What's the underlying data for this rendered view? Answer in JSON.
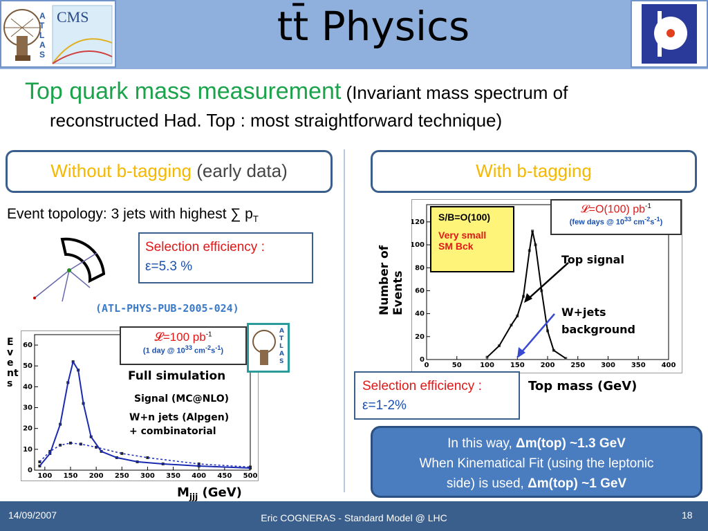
{
  "header": {
    "title": "tt̄ Physics",
    "logo_left_text": "CMS",
    "logo_left_atlas": "ATLAS"
  },
  "subtitle": {
    "main": "Top quark mass measurement",
    "paren": "(Invariant mass spectrum of",
    "line2": "reconstructed Had. Top : most straightforward technique)"
  },
  "left": {
    "pill_orange": "Without b-tagging",
    "pill_gray": "(early data)",
    "topology": "Event topology: 3 jets with highest ∑ p",
    "topology_sub": "T",
    "sel_label": "Selection efficiency :",
    "sel_value": "ε=5.3 %",
    "reference": "(ATL-PHYS-PUB-2005-024)",
    "lumi_main": "𝓛=100 pb",
    "lumi_sup": "-1",
    "lumi_note": "(1 day @ 10",
    "lumi_note_sup": "33",
    "lumi_note_tail": " cm",
    "lumi_note_sup2": "-2",
    "lumi_note_tail2": "s",
    "lumi_note_sup3": "-1",
    "lumi_note_end": ")",
    "atlas_badge": "ATLAS",
    "full_sim": "Full simulation",
    "signal": "Signal (MC@NLO)",
    "bkg1": "W+n jets (Alpgen)",
    "bkg2": "+ combinatorial",
    "ylabel": "Events",
    "xlabel_main": "M",
    "xlabel_sub": "jjj",
    "xlabel_unit": " (GeV)"
  },
  "right": {
    "pill": "With b-tagging",
    "sb_title": "S/B=O(100)",
    "sb_note1": "Very small",
    "sb_note2": "SM Bck",
    "lumi_main": "𝓛=O(100) pb",
    "lumi_sup": "-1",
    "lumi_note": "(few days @ 10",
    "lumi_note_sup": "33",
    "lumi_note_tail": " cm",
    "lumi_note_sup2": "-2",
    "lumi_note_tail2": "s",
    "lumi_note_sup3": "-1",
    "lumi_note_end": ")",
    "top_signal": "Top signal",
    "wjets1": "W+jets",
    "wjets2": "background",
    "ylabel1": "Number of",
    "ylabel2": "Events",
    "xlabel": "Top mass (GeV)",
    "sel_label": "Selection efficiency :",
    "sel_value": "ε=1-2%"
  },
  "note": {
    "line1_pre": "In this way, ",
    "line1_bold": "Δm(top) ~1.3 GeV",
    "line2": "When Kinematical Fit (using the leptonic",
    "line3_pre": "side) is used, ",
    "line3_bold": "Δm(top) ~1 GeV"
  },
  "footer": {
    "date": "14/09/2007",
    "author": "Eric COGNERAS - Standard Model @ LHC",
    "page": "18"
  },
  "chart_data": [
    {
      "type": "line",
      "x_ticks": [
        100,
        150,
        200,
        250,
        300,
        350,
        400,
        450,
        500
      ],
      "y_ticks": [
        0,
        10,
        20,
        30,
        40,
        50,
        60
      ],
      "xlim": [
        80,
        500
      ],
      "ylim": [
        0,
        65
      ],
      "series": [
        {
          "name": "Signal (MC@NLO)",
          "x": [
            90,
            110,
            130,
            145,
            155,
            165,
            175,
            190,
            210,
            240,
            280,
            330,
            400,
            500
          ],
          "y": [
            2,
            8,
            22,
            42,
            52,
            48,
            32,
            16,
            9,
            6,
            4,
            3,
            2,
            1
          ]
        },
        {
          "name": "W+n jets (Alpgen) + combinatorial",
          "x": [
            90,
            110,
            130,
            150,
            170,
            200,
            250,
            300,
            400,
            500
          ],
          "y": [
            4,
            9,
            12,
            13,
            12.5,
            11,
            8,
            6,
            3,
            1.5
          ]
        }
      ]
    },
    {
      "type": "line",
      "x_ticks": [
        0,
        50,
        100,
        150,
        200,
        250,
        300,
        350,
        400
      ],
      "y_ticks": [
        0,
        20,
        40,
        60,
        80,
        100,
        120
      ],
      "xlim": [
        0,
        400
      ],
      "ylim": [
        0,
        135
      ],
      "series": [
        {
          "name": "Top signal",
          "x": [
            100,
            120,
            140,
            150,
            160,
            170,
            175,
            180,
            190,
            200,
            210,
            230
          ],
          "y": [
            2,
            12,
            30,
            38,
            55,
            95,
            112,
            100,
            60,
            25,
            8,
            1
          ]
        }
      ]
    }
  ]
}
